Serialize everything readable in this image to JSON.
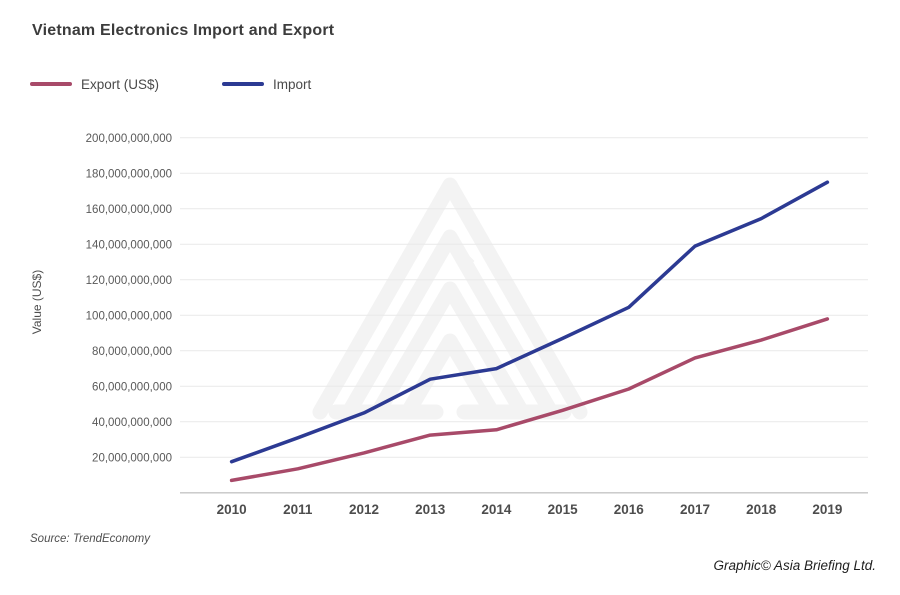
{
  "title": "Vietnam Electronics Import and Export",
  "legend": {
    "export": {
      "label": "Export (US$)",
      "color": "#a84a69"
    },
    "import": {
      "label": "Import",
      "color": "#2c3a93"
    }
  },
  "source": "Source: TrendEconomy",
  "credit": "Graphic© Asia Briefing Ltd.",
  "colors": {
    "title_text": "#3c3c3c",
    "axis_text": "#595959",
    "gridline": "#e9e9e9",
    "axis_line": "#c4c4c4",
    "watermark": "#f3f3f3",
    "export_line": "#a84a69",
    "import_line": "#2c3a93"
  },
  "chart_data": {
    "type": "line",
    "title": "Vietnam Electronics Import and Export",
    "xlabel": "",
    "ylabel": "Value (US$)",
    "categories": [
      "2010",
      "2011",
      "2012",
      "2013",
      "2014",
      "2015",
      "2016",
      "2017",
      "2018",
      "2019"
    ],
    "series": [
      {
        "name": "Export (US$)",
        "color": "#a84a69",
        "values": [
          7000000000,
          13500000000,
          22500000000,
          32500000000,
          35500000000,
          46500000000,
          58500000000,
          76000000000,
          86000000000,
          98000000000
        ]
      },
      {
        "name": "Import",
        "color": "#2c3a93",
        "values": [
          17500000000,
          31000000000,
          45000000000,
          64000000000,
          70000000000,
          87000000000,
          104500000000,
          139000000000,
          154500000000,
          175000000000
        ]
      }
    ],
    "ylim": [
      0,
      200000000000
    ],
    "ytick_step": 20000000000,
    "ytick_labels": [
      "20,000,000,000",
      "40,000,000,000",
      "60,000,000,000",
      "80,000,000,000",
      "100,000,000,000",
      "120,000,000,000",
      "140,000,000,000",
      "160,000,000,000",
      "180,000,000,000",
      "200,000,000,000"
    ],
    "grid": true,
    "legend_position": "top-left"
  }
}
